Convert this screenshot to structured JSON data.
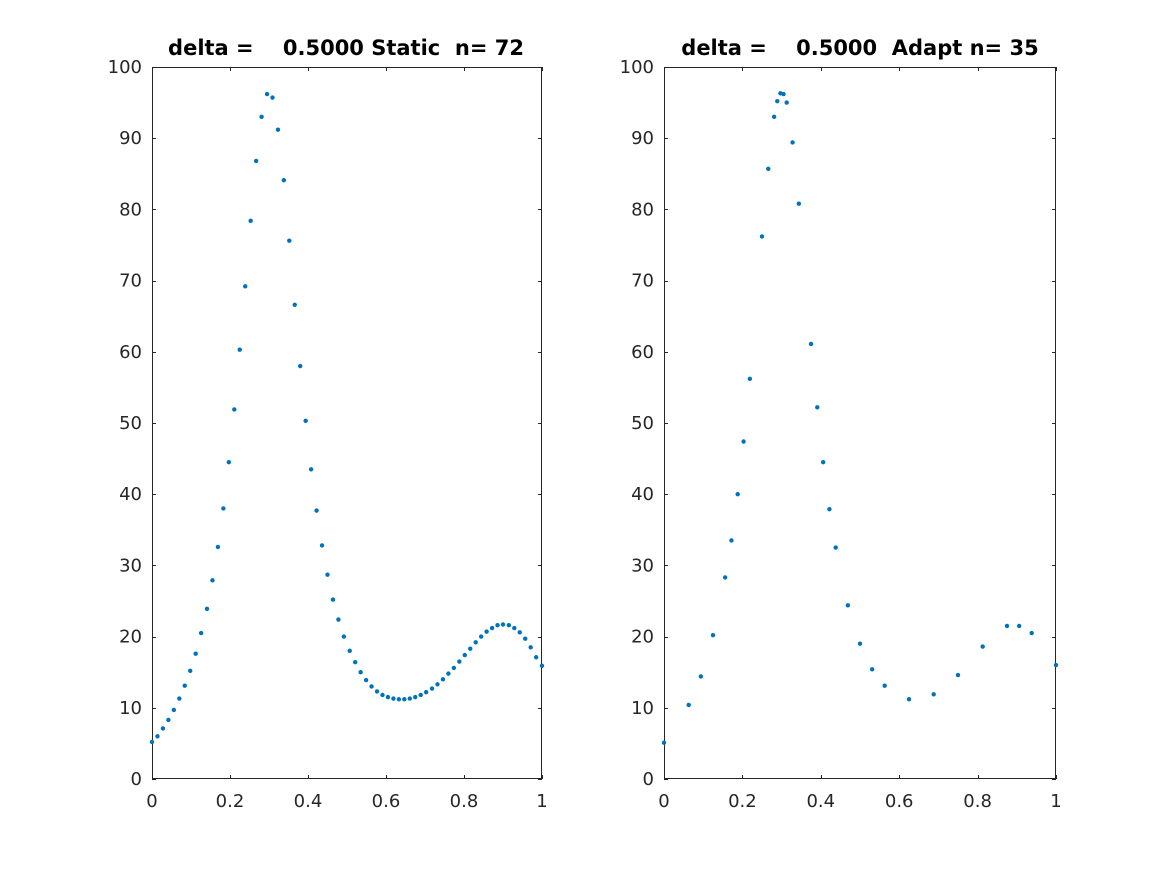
{
  "chart_data": [
    {
      "type": "scatter",
      "title": "delta =    0.5000 Static  n= 72",
      "xlim": [
        0,
        1
      ],
      "ylim": [
        0,
        100
      ],
      "x_ticks": [
        0,
        0.2,
        0.4,
        0.6,
        0.8,
        1
      ],
      "x_tick_labels": [
        "0",
        "0.2",
        "0.4",
        "0.6",
        "0.8",
        "1"
      ],
      "y_ticks": [
        0,
        10,
        20,
        30,
        40,
        50,
        60,
        70,
        80,
        90,
        100
      ],
      "y_tick_labels": [
        "0",
        "10",
        "20",
        "30",
        "40",
        "50",
        "60",
        "70",
        "80",
        "90",
        "100"
      ],
      "grid": false,
      "marker_color": "#0072BD",
      "points": [
        [
          0.0,
          5.2
        ],
        [
          0.014,
          6.0
        ],
        [
          0.028,
          7.1
        ],
        [
          0.042,
          8.3
        ],
        [
          0.056,
          9.7
        ],
        [
          0.07,
          11.3
        ],
        [
          0.084,
          13.1
        ],
        [
          0.098,
          15.2
        ],
        [
          0.112,
          17.6
        ],
        [
          0.126,
          20.5
        ],
        [
          0.141,
          23.9
        ],
        [
          0.155,
          27.9
        ],
        [
          0.169,
          32.6
        ],
        [
          0.183,
          38.0
        ],
        [
          0.197,
          44.5
        ],
        [
          0.211,
          51.9
        ],
        [
          0.225,
          60.3
        ],
        [
          0.239,
          69.2
        ],
        [
          0.253,
          78.4
        ],
        [
          0.267,
          86.8
        ],
        [
          0.281,
          93.0
        ],
        [
          0.295,
          96.2
        ],
        [
          0.309,
          95.7
        ],
        [
          0.323,
          91.2
        ],
        [
          0.338,
          84.1
        ],
        [
          0.352,
          75.6
        ],
        [
          0.366,
          66.6
        ],
        [
          0.38,
          58.0
        ],
        [
          0.394,
          50.3
        ],
        [
          0.408,
          43.5
        ],
        [
          0.422,
          37.7
        ],
        [
          0.436,
          32.8
        ],
        [
          0.45,
          28.7
        ],
        [
          0.464,
          25.2
        ],
        [
          0.478,
          22.4
        ],
        [
          0.492,
          20.0
        ],
        [
          0.507,
          18.0
        ],
        [
          0.521,
          16.4
        ],
        [
          0.535,
          15.0
        ],
        [
          0.549,
          13.9
        ],
        [
          0.563,
          13.0
        ],
        [
          0.577,
          12.3
        ],
        [
          0.591,
          11.8
        ],
        [
          0.605,
          11.5
        ],
        [
          0.619,
          11.3
        ],
        [
          0.633,
          11.2
        ],
        [
          0.647,
          11.2
        ],
        [
          0.661,
          11.3
        ],
        [
          0.675,
          11.5
        ],
        [
          0.689,
          11.8
        ],
        [
          0.703,
          12.2
        ],
        [
          0.718,
          12.7
        ],
        [
          0.732,
          13.3
        ],
        [
          0.746,
          14.0
        ],
        [
          0.76,
          14.8
        ],
        [
          0.774,
          15.6
        ],
        [
          0.788,
          16.5
        ],
        [
          0.802,
          17.4
        ],
        [
          0.816,
          18.3
        ],
        [
          0.83,
          19.2
        ],
        [
          0.844,
          20.0
        ],
        [
          0.858,
          20.7
        ],
        [
          0.872,
          21.2
        ],
        [
          0.886,
          21.6
        ],
        [
          0.9,
          21.7
        ],
        [
          0.915,
          21.6
        ],
        [
          0.929,
          21.2
        ],
        [
          0.943,
          20.6
        ],
        [
          0.957,
          19.7
        ],
        [
          0.971,
          18.5
        ],
        [
          0.985,
          17.1
        ],
        [
          1.0,
          15.9
        ]
      ]
    },
    {
      "type": "scatter",
      "title": "delta =    0.5000  Adapt n= 35",
      "xlim": [
        0,
        1
      ],
      "ylim": [
        0,
        100
      ],
      "x_ticks": [
        0,
        0.2,
        0.4,
        0.6,
        0.8,
        1
      ],
      "x_tick_labels": [
        "0",
        "0.2",
        "0.4",
        "0.6",
        "0.8",
        "1"
      ],
      "y_ticks": [
        0,
        10,
        20,
        30,
        40,
        50,
        60,
        70,
        80,
        90,
        100
      ],
      "y_tick_labels": [
        "0",
        "10",
        "20",
        "30",
        "40",
        "50",
        "60",
        "70",
        "80",
        "90",
        "100"
      ],
      "grid": false,
      "marker_color": "#0072BD",
      "points": [
        [
          0.0,
          5.1
        ],
        [
          0.063,
          10.4
        ],
        [
          0.094,
          14.4
        ],
        [
          0.125,
          20.2
        ],
        [
          0.156,
          28.3
        ],
        [
          0.172,
          33.5
        ],
        [
          0.188,
          40.0
        ],
        [
          0.203,
          47.4
        ],
        [
          0.219,
          56.2
        ],
        [
          0.25,
          76.2
        ],
        [
          0.266,
          85.7
        ],
        [
          0.281,
          93.0
        ],
        [
          0.289,
          95.2
        ],
        [
          0.297,
          96.3
        ],
        [
          0.305,
          96.2
        ],
        [
          0.313,
          95.0
        ],
        [
          0.328,
          89.4
        ],
        [
          0.344,
          80.8
        ],
        [
          0.375,
          61.1
        ],
        [
          0.391,
          52.2
        ],
        [
          0.406,
          44.5
        ],
        [
          0.422,
          37.9
        ],
        [
          0.438,
          32.5
        ],
        [
          0.469,
          24.4
        ],
        [
          0.5,
          19.0
        ],
        [
          0.531,
          15.4
        ],
        [
          0.563,
          13.1
        ],
        [
          0.625,
          11.2
        ],
        [
          0.688,
          11.9
        ],
        [
          0.75,
          14.6
        ],
        [
          0.813,
          18.6
        ],
        [
          0.875,
          21.5
        ],
        [
          0.906,
          21.5
        ],
        [
          0.938,
          20.5
        ],
        [
          1.0,
          16.0
        ]
      ]
    }
  ]
}
